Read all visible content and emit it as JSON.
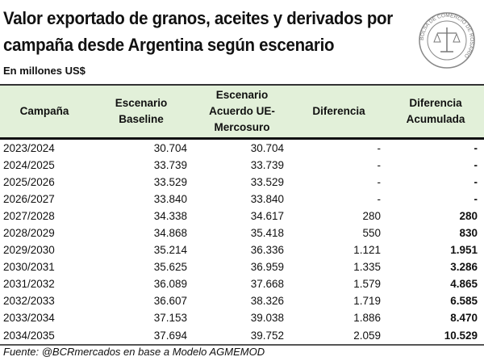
{
  "title_line1": "Valor exportado de granos, aceites y derivados por",
  "title_line2": "campaña desde Argentina según escenario",
  "subtitle": "En millones US$",
  "logo_text": "BOLSA DE COMERCIO DE ROSARIO",
  "headers": [
    "Campaña",
    "Escenario Baseline",
    "Escenario Acuerdo UE-Mercosuro",
    "Diferencia",
    "Diferencia Acumulada"
  ],
  "rows": [
    [
      "2023/2024",
      "30.704",
      "30.704",
      "-",
      "-"
    ],
    [
      "2024/2025",
      "33.739",
      "33.739",
      "-",
      "-"
    ],
    [
      "2025/2026",
      "33.529",
      "33.529",
      "-",
      "-"
    ],
    [
      "2026/2027",
      "33.840",
      "33.840",
      "-",
      "-"
    ],
    [
      "2027/2028",
      "34.338",
      "34.617",
      "280",
      "280"
    ],
    [
      "2028/2029",
      "34.868",
      "35.418",
      "550",
      "830"
    ],
    [
      "2029/2030",
      "35.214",
      "36.336",
      "1.121",
      "1.951"
    ],
    [
      "2030/2031",
      "35.625",
      "36.959",
      "1.335",
      "3.286"
    ],
    [
      "2031/2032",
      "36.089",
      "37.668",
      "1.579",
      "4.865"
    ],
    [
      "2032/2033",
      "36.607",
      "38.326",
      "1.719",
      "6.585"
    ],
    [
      "2033/2034",
      "37.153",
      "39.038",
      "1.886",
      "8.470"
    ],
    [
      "2034/2035",
      "37.694",
      "39.752",
      "2.059",
      "10.529"
    ]
  ],
  "source": "Fuente: @BCRmercados en base a Modelo AGMEMOD",
  "colors": {
    "header_bg": "#e2f0d9"
  }
}
